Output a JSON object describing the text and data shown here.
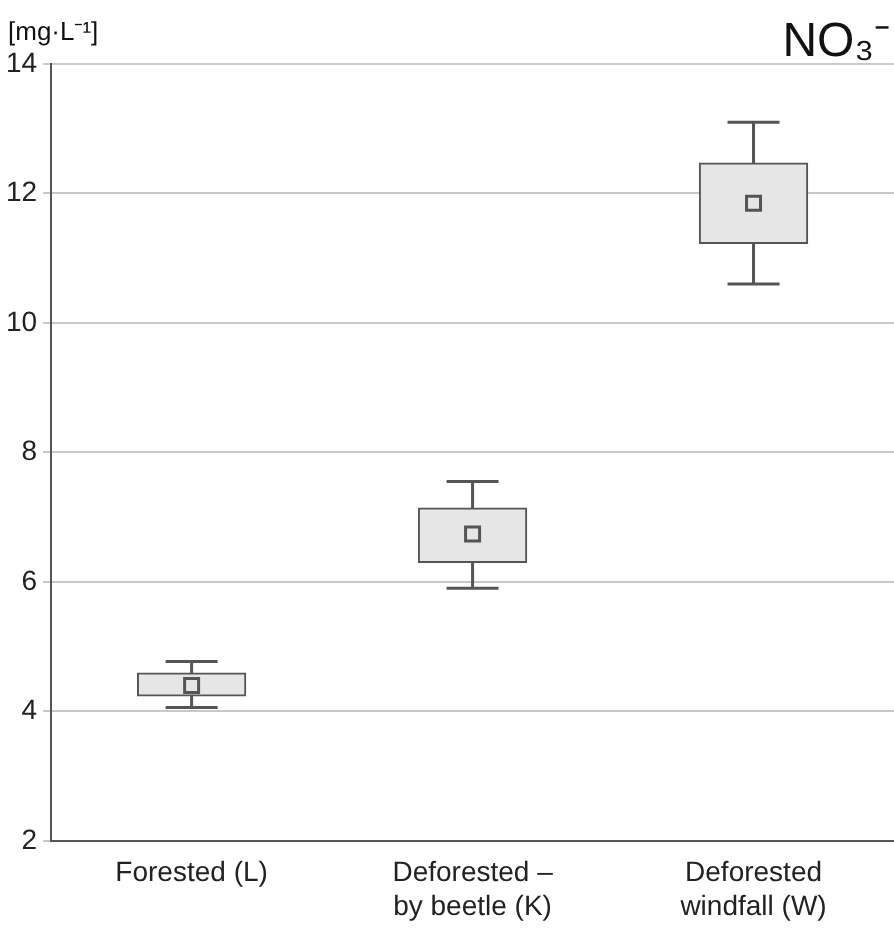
{
  "chart_data": {
    "type": "box",
    "title": "NO₃⁻",
    "ylabel": "[mg·L⁻¹]",
    "categories": [
      "Forested (L)",
      "Deforested – by beetle (K)",
      "Deforested windfall (W)"
    ],
    "boxes": [
      {
        "low": 4.06,
        "q1": 4.24,
        "q3": 4.59,
        "high": 4.77,
        "mean": 4.4
      },
      {
        "low": 5.9,
        "q1": 6.3,
        "q3": 7.14,
        "high": 7.55,
        "mean": 6.74
      },
      {
        "low": 10.6,
        "q1": 11.23,
        "q3": 12.47,
        "high": 13.1,
        "mean": 11.85
      }
    ],
    "color": "#555555",
    "ylim": [
      2,
      14
    ],
    "yticks": [
      2,
      4,
      6,
      8,
      10,
      12,
      14
    ],
    "grid": "y",
    "legend": false
  }
}
